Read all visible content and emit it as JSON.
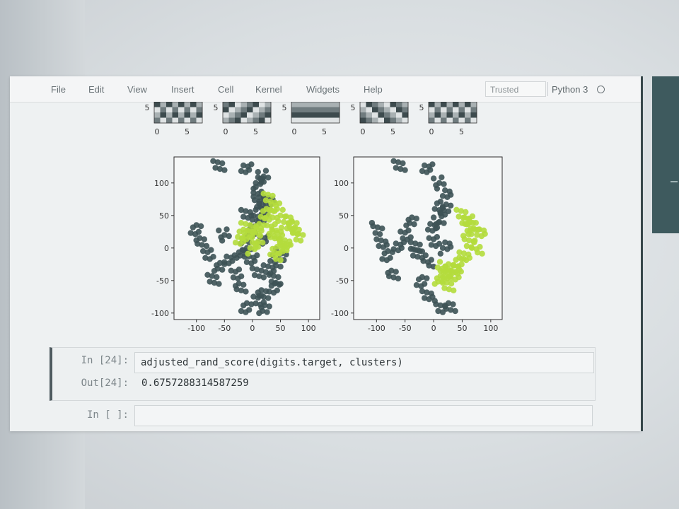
{
  "menubar": {
    "items": [
      "File",
      "Edit",
      "View",
      "Insert",
      "Cell",
      "Kernel",
      "Widgets",
      "Help"
    ],
    "trusted_label": "Trusted",
    "kernel_label": "Python 3"
  },
  "digit_thumbnails": {
    "ytick_label": "5",
    "xtick_labels": [
      "0",
      "5"
    ],
    "count": 5
  },
  "chart_data": [
    {
      "type": "scatter",
      "title": "",
      "xlabel": "",
      "ylabel": "",
      "xlim": [
        -140,
        120
      ],
      "ylim": [
        -110,
        140
      ],
      "xticks": [
        -100,
        -50,
        0,
        50,
        100
      ],
      "yticks": [
        -100,
        -50,
        0,
        50,
        100
      ],
      "tick_labels_x": [
        "-100",
        "-50",
        "0",
        "50",
        "100"
      ],
      "tick_labels_y": [
        "-100",
        "-50",
        "0",
        "50",
        "100"
      ],
      "colors": {
        "cluster_a": "#3d5255",
        "cluster_b": "#b4dc3c"
      },
      "series": [
        {
          "values": {
            "x": [
              -60,
              -10,
              20,
              10,
              10,
              10,
              -10,
              -100,
              -90,
              -80,
              -60,
              -70,
              -40,
              -50,
              0,
              10,
              20,
              30,
              40,
              20,
              10,
              20,
              10,
              0,
              -10,
              -5,
              40,
              50,
              30,
              -10,
              -20,
              -30,
              -20,
              40,
              20
            ],
            "y": [
              125,
              120,
              110,
              100,
              85,
              70,
              55,
              30,
              10,
              -10,
              -30,
              -50,
              -20,
              20,
              35,
              50,
              60,
              75,
              -60,
              -70,
              -80,
              -95,
              -40,
              -20,
              0,
              20,
              -20,
              -10,
              -30,
              -90,
              -60,
              -40,
              -10,
              -50,
              10
            ]
          }
        },
        {
          "values": {
            "x": [
              30,
              40,
              50,
              60,
              70,
              80,
              60,
              50,
              40,
              30,
              10,
              -10,
              -20,
              10,
              0,
              40,
              55,
              45,
              25,
              75,
              -15,
              5
            ],
            "y": [
              75,
              60,
              50,
              40,
              30,
              20,
              10,
              0,
              20,
              40,
              30,
              30,
              10,
              10,
              0,
              -10,
              5,
              25,
              55,
              35,
              20,
              25
            ]
          }
        }
      ]
    },
    {
      "type": "scatter",
      "title": "",
      "xlabel": "",
      "ylabel": "",
      "xlim": [
        -140,
        120
      ],
      "ylim": [
        -110,
        140
      ],
      "xticks": [
        -100,
        -50,
        0,
        50,
        100
      ],
      "yticks": [
        -100,
        -50,
        0,
        50,
        100
      ],
      "tick_labels_x": [
        "-100",
        "-50",
        "0",
        "50",
        "100"
      ],
      "tick_labels_y": [
        "-100",
        "-50",
        "0",
        "50",
        "100"
      ],
      "colors": {
        "cluster_a": "#3d5255",
        "cluster_b": "#b4dc3c"
      },
      "series": [
        {
          "values": {
            "x": [
              -60,
              -10,
              10,
              20,
              10,
              -100,
              -90,
              -80,
              -70,
              -50,
              -40,
              -30,
              0,
              10,
              20,
              -10,
              10,
              -10,
              -20,
              30,
              0,
              20,
              -30,
              -60
            ],
            "y": [
              125,
              120,
              100,
              80,
              60,
              30,
              10,
              -10,
              -40,
              20,
              40,
              0,
              30,
              40,
              0,
              -20,
              -90,
              -70,
              -50,
              -90,
              10,
              60,
              -10,
              0
            ]
          }
        },
        {
          "values": {
            "x": [
              50,
              60,
              70,
              80,
              75,
              60,
              55,
              45,
              30,
              20,
              10,
              25,
              40,
              65,
              35,
              15
            ],
            "y": [
              50,
              40,
              30,
              20,
              0,
              10,
              -10,
              -20,
              -30,
              -40,
              -50,
              -60,
              -45,
              30,
              -35,
              -30
            ]
          }
        }
      ]
    }
  ],
  "cells": {
    "executed": {
      "in_prompt": "In [24]:",
      "code": "adjusted_rand_score(digits.target, clusters)",
      "out_prompt": "Out[24]:",
      "output": "0.6757288314587259"
    },
    "empty": {
      "in_prompt": "In [ ]:"
    }
  }
}
